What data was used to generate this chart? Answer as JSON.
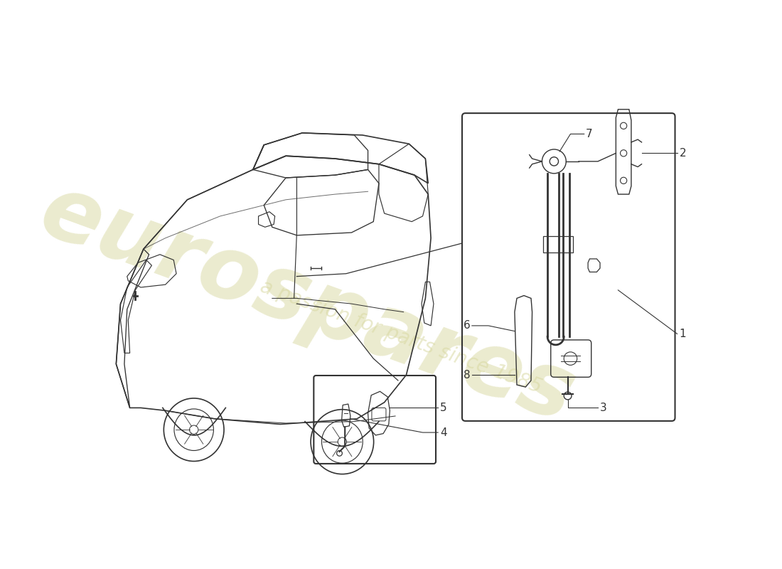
{
  "background_color": "#ffffff",
  "line_color": "#333333",
  "watermark_main": "eurospares",
  "watermark_sub": "a passion for parts since 1985",
  "watermark_color": "#d8d8a0",
  "part_labels": [
    "1",
    "2",
    "3",
    "4",
    "5",
    "6",
    "7",
    "8"
  ]
}
